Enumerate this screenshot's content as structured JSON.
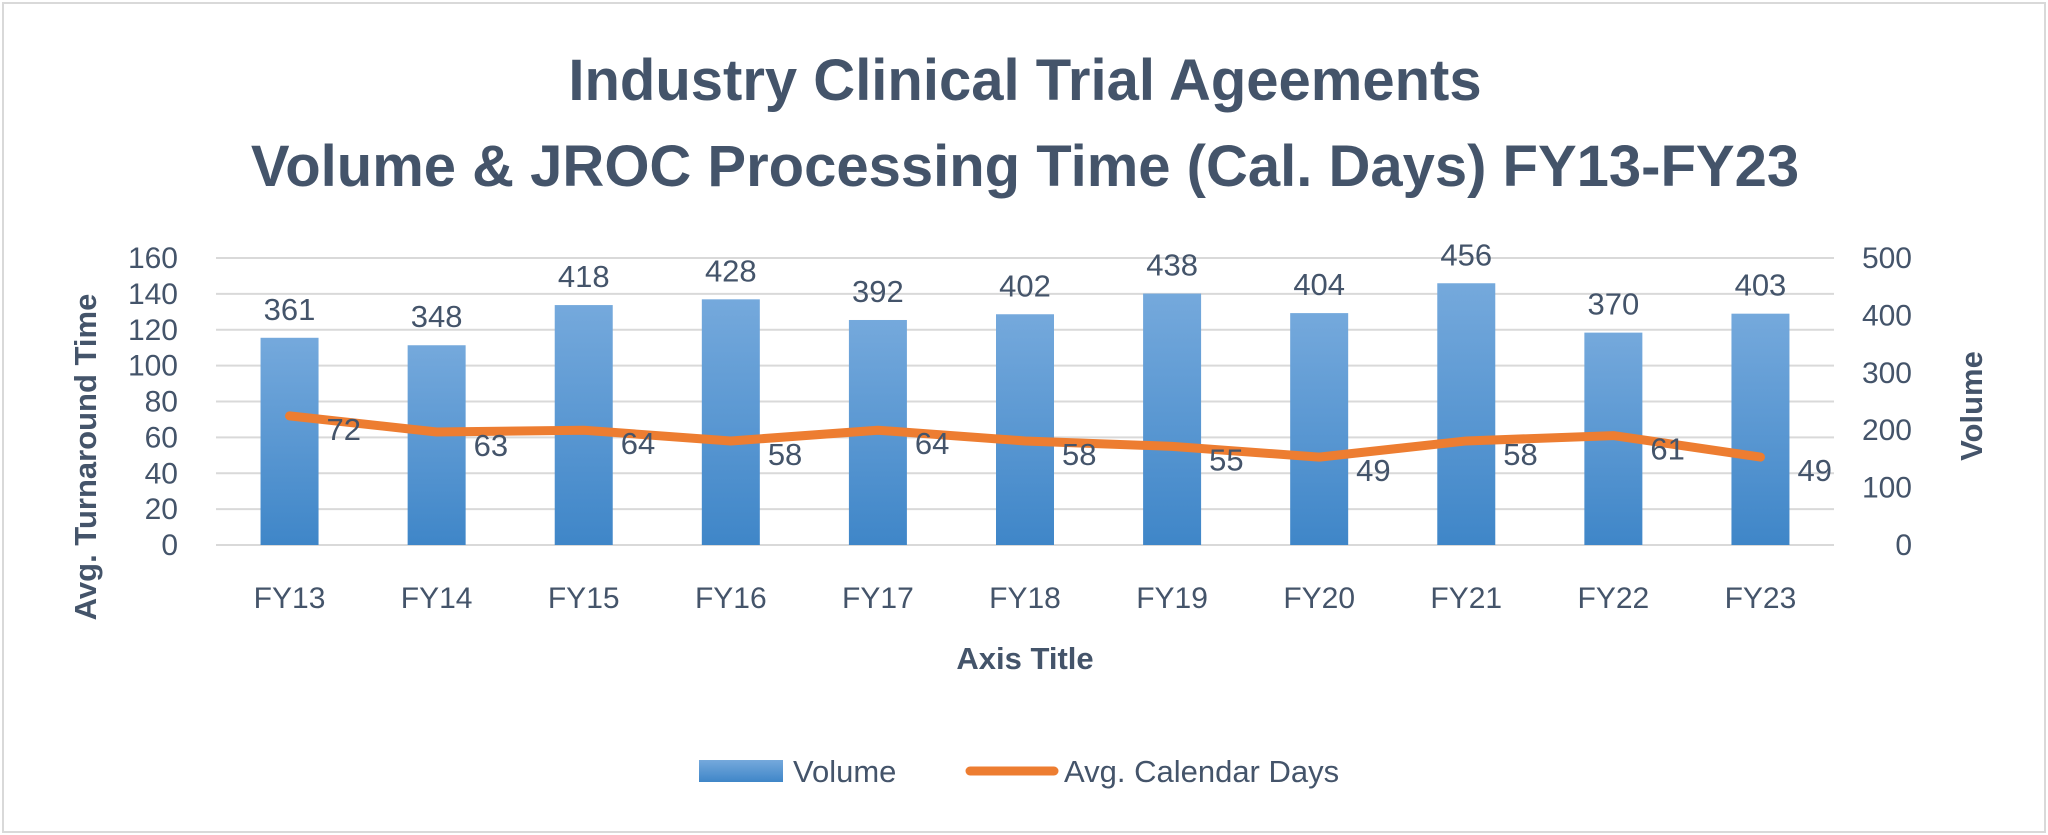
{
  "colors": {
    "bar_top": "#75a9dc",
    "bar_bottom": "#3f86c8",
    "line": "#ed7d31",
    "text": "#44546a",
    "grid": "#d9d9d9"
  },
  "chart_data": {
    "type": "bar+line",
    "title": [
      "Industry Clinical Trial Ageements",
      "Volume & JROC Processing Time (Cal. Days) FY13-FY23"
    ],
    "categories": [
      "FY13",
      "FY14",
      "FY15",
      "FY16",
      "FY17",
      "FY18",
      "FY19",
      "FY20",
      "FY21",
      "FY22",
      "FY23"
    ],
    "series": [
      {
        "name": "Volume",
        "type": "bar",
        "axis": "right",
        "values": [
          361,
          348,
          418,
          428,
          392,
          402,
          438,
          404,
          456,
          370,
          403
        ]
      },
      {
        "name": "Avg. Calendar Days",
        "type": "line",
        "axis": "left",
        "values": [
          72,
          63,
          64,
          58,
          64,
          58,
          55,
          49,
          58,
          61,
          49
        ]
      }
    ],
    "xlabel": "Axis Title",
    "ylabel_left": "Avg. Turnaround Time",
    "ylabel_right": "Volume",
    "ylim_left": [
      0,
      160
    ],
    "yticks_left": [
      0,
      20,
      40,
      60,
      80,
      100,
      120,
      140,
      160
    ],
    "ylim_right": [
      0,
      500
    ],
    "yticks_right": [
      0,
      100,
      200,
      300,
      400,
      500
    ],
    "grid": true,
    "legend": "bottom"
  }
}
